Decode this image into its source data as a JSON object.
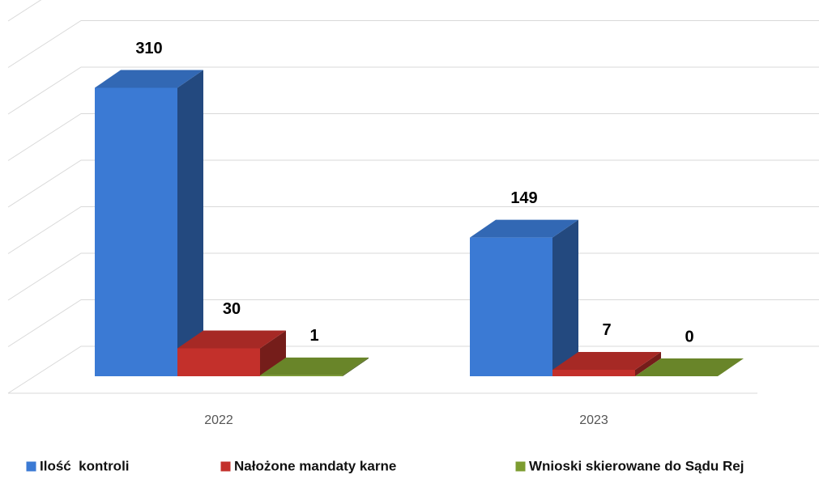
{
  "chart_data": {
    "type": "bar3d",
    "categories": [
      "2022",
      "2023"
    ],
    "series": [
      {
        "name": "Ilość  kontroli",
        "color": "#3b7ad4",
        "values": [
          310,
          149
        ]
      },
      {
        "name": "Nałożone mandaty karne",
        "color": "#c3302b",
        "values": [
          30,
          7
        ]
      },
      {
        "name": "Wnioski skierowane do Sądu Rej",
        "color": "#7c9c30",
        "values": [
          1,
          0
        ]
      }
    ],
    "ylim": [
      0,
      400
    ],
    "yticks": [
      0,
      50,
      100,
      150,
      200,
      250,
      300,
      350,
      400
    ],
    "grid": true,
    "legend": "bottom"
  }
}
